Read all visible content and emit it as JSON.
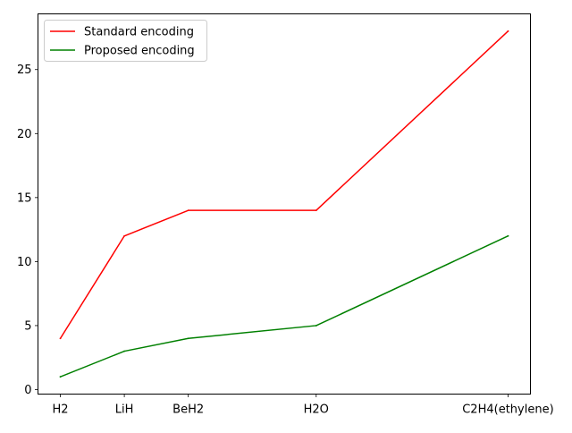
{
  "chart_data": {
    "type": "line",
    "categories": [
      "H2",
      "LiH",
      "BeH2",
      "H2O",
      "C2H4(ethylene)"
    ],
    "x": [
      0,
      1,
      2,
      4,
      7
    ],
    "series": [
      {
        "name": "Standard encoding",
        "color": "#ff0000",
        "values": [
          4,
          12,
          14,
          14,
          28
        ]
      },
      {
        "name": "Proposed encoding",
        "color": "#008000",
        "values": [
          1,
          3,
          4,
          5,
          12
        ]
      }
    ],
    "yticks": [
      0,
      5,
      10,
      15,
      20,
      25
    ],
    "ylim": [
      -0.35,
      29.35
    ],
    "xlim": [
      -0.35,
      7.35
    ],
    "title": "",
    "xlabel": "",
    "ylabel": "",
    "grid": false,
    "legend_position": "top-left"
  }
}
